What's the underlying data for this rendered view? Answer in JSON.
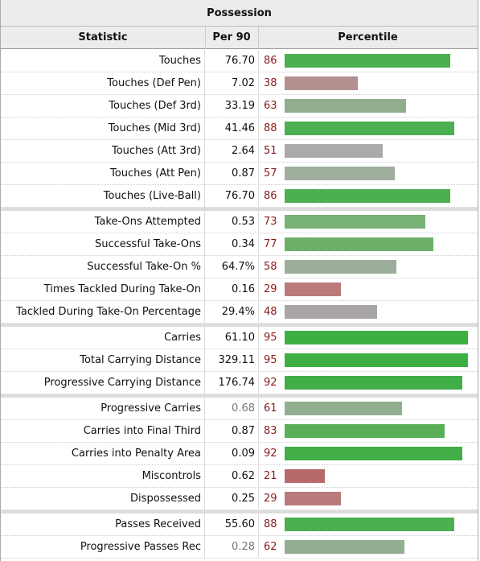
{
  "table": {
    "title": "Possession",
    "headers": {
      "statistic": "Statistic",
      "per90": "Per 90",
      "percentile": "Percentile"
    },
    "groups": [
      [
        {
          "stat": "Touches",
          "per90": "76.70",
          "pct": "86",
          "color": "#4caf50"
        },
        {
          "stat": "Touches (Def Pen)",
          "per90": "7.02",
          "pct": "38",
          "color": "#b38f90"
        },
        {
          "stat": "Touches (Def 3rd)",
          "per90": "33.19",
          "pct": "63",
          "color": "#90ae8e"
        },
        {
          "stat": "Touches (Mid 3rd)",
          "per90": "41.46",
          "pct": "88",
          "color": "#4caf50"
        },
        {
          "stat": "Touches (Att 3rd)",
          "per90": "2.64",
          "pct": "51",
          "color": "#aaaaaa"
        },
        {
          "stat": "Touches (Att Pen)",
          "per90": "0.87",
          "pct": "57",
          "color": "#9fae9d"
        },
        {
          "stat": "Touches (Live-Ball)",
          "per90": "76.70",
          "pct": "86",
          "color": "#4caf50"
        }
      ],
      [
        {
          "stat": "Take-Ons Attempted",
          "per90": "0.53",
          "pct": "73",
          "color": "#78b174"
        },
        {
          "stat": "Successful Take-Ons",
          "per90": "0.34",
          "pct": "77",
          "color": "#6daf69"
        },
        {
          "stat": "Successful Take-On %",
          "per90": "64.7%",
          "pct": "58",
          "color": "#9cae9a"
        },
        {
          "stat": "Times Tackled During Take-On",
          "per90": "0.16",
          "pct": "29",
          "color": "#b87a7b"
        },
        {
          "stat": "Tackled During Take-On Percentage",
          "per90": "29.4%",
          "pct": "48",
          "color": "#aaa6a6"
        }
      ],
      [
        {
          "stat": "Carries",
          "per90": "61.10",
          "pct": "95",
          "color": "#3cb043"
        },
        {
          "stat": "Total Carrying Distance",
          "per90": "329.11",
          "pct": "95",
          "color": "#3cb043"
        },
        {
          "stat": "Progressive Carrying Distance",
          "per90": "176.74",
          "pct": "92",
          "color": "#42ae48"
        }
      ],
      [
        {
          "stat": "Progressive Carries",
          "per90": "0.68",
          "pct": "61",
          "color": "#92ae90",
          "gray": true
        },
        {
          "stat": "Carries into Final Third",
          "per90": "0.87",
          "pct": "83",
          "color": "#5baf58"
        },
        {
          "stat": "Carries into Penalty Area",
          "per90": "0.09",
          "pct": "92",
          "color": "#42ae48"
        },
        {
          "stat": "Miscontrols",
          "per90": "0.62",
          "pct": "21",
          "color": "#b86a6b"
        },
        {
          "stat": "Dispossessed",
          "per90": "0.25",
          "pct": "29",
          "color": "#b87a7b"
        }
      ],
      [
        {
          "stat": "Passes Received",
          "per90": "55.60",
          "pct": "88",
          "color": "#4caf50"
        },
        {
          "stat": "Progressive Passes Rec",
          "per90": "0.28",
          "pct": "62",
          "color": "#92ae90",
          "gray": true
        }
      ]
    ]
  }
}
